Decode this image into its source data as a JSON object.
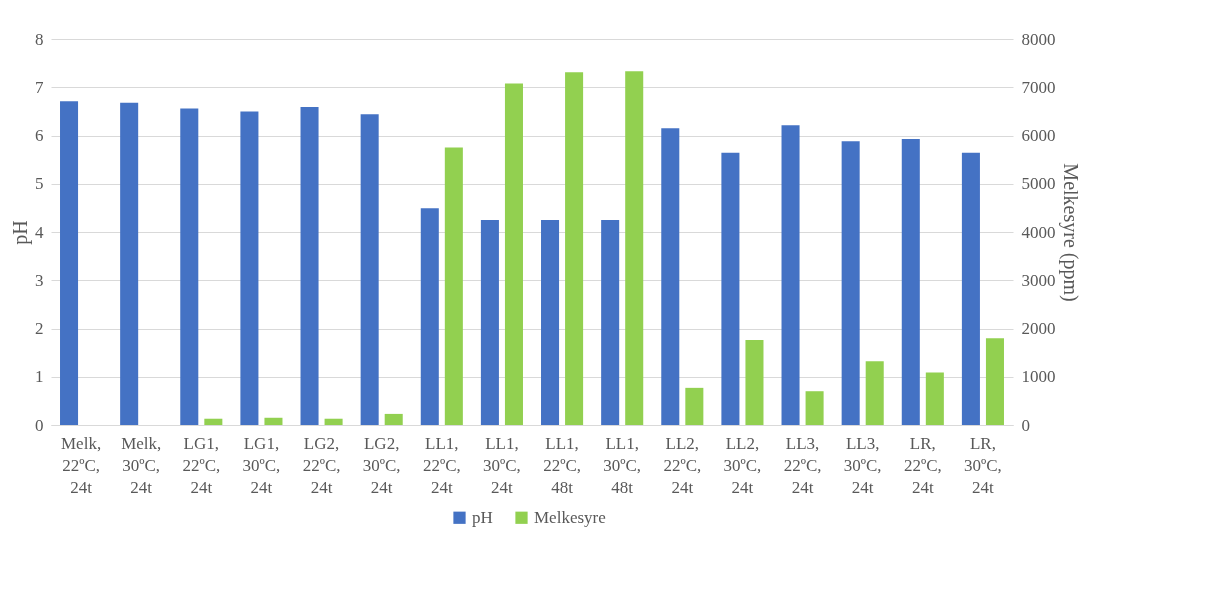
{
  "chart_data": {
    "type": "bar",
    "categories": [
      "Melk, 22ºC, 24t",
      "Melk, 30ºC, 24t",
      "LG1, 22ºC, 24t",
      "LG1, 30ºC, 24t",
      "LG2, 22ºC, 24t",
      "LG2, 30ºC, 24t",
      "LL1, 22ºC, 24t",
      "LL1, 30ºC, 24t",
      "LL1, 22ºC, 48t",
      "LL1, 30ºC, 48t",
      "LL2, 22ºC, 24t",
      "LL2, 30ºC, 24t",
      "LL3, 22ºC, 24t",
      "LL3, 30ºC, 24t",
      "LR, 22ºC, 24t",
      "LR, 30ºC, 24t"
    ],
    "series": [
      {
        "name": "pH",
        "color": "#4472c4",
        "values": [
          6.71,
          6.68,
          6.56,
          6.5,
          6.59,
          6.44,
          4.49,
          4.25,
          4.25,
          4.25,
          6.15,
          5.64,
          6.21,
          5.88,
          5.93,
          5.64
        ]
      },
      {
        "name": "Melkesyre",
        "color": "#92d050",
        "axis": "y2",
        "values": [
          0,
          0,
          130,
          150,
          130,
          230,
          5750,
          7080,
          7310,
          7330,
          770,
          1760,
          700,
          1320,
          1090,
          1800
        ]
      }
    ],
    "ylabel": "pH",
    "y2label": "Melkesyre (ppm)",
    "ylim": [
      0,
      8
    ],
    "yticks": [
      0,
      1,
      2,
      3,
      4,
      5,
      6,
      7,
      8
    ],
    "y2lim": [
      0,
      8000
    ],
    "y2ticks": [
      0,
      1000,
      2000,
      3000,
      4000,
      5000,
      6000,
      7000,
      8000
    ],
    "grid": "y",
    "legend": "bottom"
  }
}
